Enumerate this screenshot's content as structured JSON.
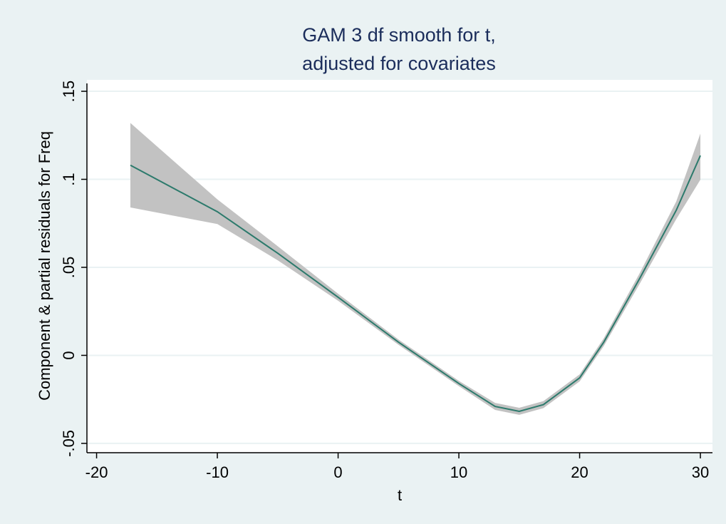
{
  "chart_data": {
    "type": "line",
    "title": [
      "GAM 3 df smooth for t,",
      "adjusted for covariates"
    ],
    "x_label": "t",
    "y_label": "Component & partial residuals for Freq",
    "x": [
      -17.2,
      -10,
      -5,
      0,
      5,
      10,
      13,
      15,
      17,
      20,
      22,
      25,
      28,
      30
    ],
    "values": [
      0.108,
      0.0816,
      0.058,
      0.033,
      0.0075,
      -0.016,
      -0.029,
      -0.0318,
      -0.028,
      -0.0128,
      0.0075,
      0.044,
      0.0824,
      0.1135
    ],
    "ci_upper": [
      0.132,
      0.0886,
      0.062,
      0.035,
      0.009,
      -0.0145,
      -0.027,
      -0.0298,
      -0.026,
      -0.0108,
      0.0097,
      0.047,
      0.0874,
      0.126
    ],
    "ci_lower": [
      0.084,
      0.0746,
      0.054,
      0.031,
      0.006,
      -0.0175,
      -0.031,
      -0.0338,
      -0.03,
      -0.0148,
      0.0053,
      0.041,
      0.0774,
      0.0998
    ],
    "line_color": "#2c7a6c",
    "band_color": "#c2c2c2",
    "xlim": [
      -20.8,
      31
    ],
    "ylim": [
      -0.0553,
      0.1565
    ],
    "xticks": [
      -20,
      -10,
      0,
      10,
      20,
      30
    ],
    "yticks": [
      {
        "value": -0.05,
        "label": "-.05"
      },
      {
        "value": 0,
        "label": "0"
      },
      {
        "value": 0.05,
        "label": ".05"
      },
      {
        "value": 0.1,
        "label": ".1"
      },
      {
        "value": 0.15,
        "label": ".15"
      }
    ],
    "grid": true
  }
}
